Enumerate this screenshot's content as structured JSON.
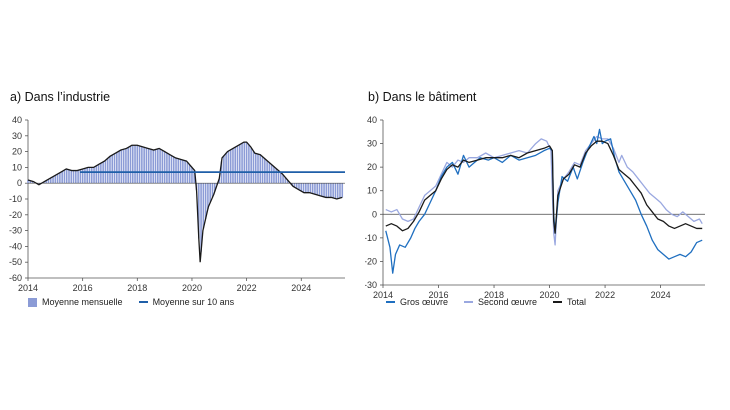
{
  "chart_data": [
    {
      "type": "bar",
      "title": "a)  Dans l’industrie",
      "ylim": [
        -60,
        40
      ],
      "yticks": [
        40,
        30,
        20,
        10,
        0,
        -10,
        -20,
        -30,
        -40,
        -50,
        -60
      ],
      "xlim": [
        2014,
        2025.6
      ],
      "xticks": [
        "2014",
        "2016",
        "2018",
        "2020",
        "2022",
        "2024"
      ],
      "grid": false,
      "legend_position": "bottom",
      "colors": {
        "bars": "#8b9bd6",
        "line": "#1a1a1a",
        "avg": "#1f5fa8"
      },
      "series": [
        {
          "name": "Moyenne mensuelle",
          "render": "bars+line",
          "points": [
            [
              2014.0,
              2
            ],
            [
              2014.2,
              1
            ],
            [
              2014.4,
              -1
            ],
            [
              2014.6,
              1
            ],
            [
              2014.8,
              3
            ],
            [
              2015.0,
              5
            ],
            [
              2015.2,
              7
            ],
            [
              2015.4,
              9
            ],
            [
              2015.6,
              8
            ],
            [
              2015.8,
              8
            ],
            [
              2016.0,
              9
            ],
            [
              2016.2,
              10
            ],
            [
              2016.4,
              10
            ],
            [
              2016.6,
              12
            ],
            [
              2016.8,
              14
            ],
            [
              2017.0,
              17
            ],
            [
              2017.2,
              19
            ],
            [
              2017.4,
              21
            ],
            [
              2017.6,
              22
            ],
            [
              2017.8,
              24
            ],
            [
              2018.0,
              24
            ],
            [
              2018.2,
              23
            ],
            [
              2018.4,
              22
            ],
            [
              2018.6,
              21
            ],
            [
              2018.8,
              22
            ],
            [
              2019.0,
              20
            ],
            [
              2019.2,
              18
            ],
            [
              2019.4,
              16
            ],
            [
              2019.6,
              15
            ],
            [
              2019.8,
              14
            ],
            [
              2019.95,
              11
            ],
            [
              2020.1,
              8
            ],
            [
              2020.17,
              -5
            ],
            [
              2020.25,
              -35
            ],
            [
              2020.3,
              -50
            ],
            [
              2020.4,
              -30
            ],
            [
              2020.6,
              -15
            ],
            [
              2020.8,
              -7
            ],
            [
              2021.0,
              3
            ],
            [
              2021.1,
              16
            ],
            [
              2021.3,
              20
            ],
            [
              2021.5,
              22
            ],
            [
              2021.7,
              24
            ],
            [
              2021.9,
              26
            ],
            [
              2022.0,
              26
            ],
            [
              2022.15,
              23
            ],
            [
              2022.3,
              19
            ],
            [
              2022.5,
              18
            ],
            [
              2022.7,
              15
            ],
            [
              2022.9,
              12
            ],
            [
              2023.1,
              9
            ],
            [
              2023.3,
              6
            ],
            [
              2023.5,
              2
            ],
            [
              2023.7,
              -2
            ],
            [
              2023.9,
              -4
            ],
            [
              2024.1,
              -6
            ],
            [
              2024.3,
              -6
            ],
            [
              2024.5,
              -7
            ],
            [
              2024.7,
              -8
            ],
            [
              2024.9,
              -9
            ],
            [
              2025.1,
              -9
            ],
            [
              2025.3,
              -10
            ],
            [
              2025.5,
              -9
            ]
          ]
        },
        {
          "name": "Moyenne sur 10 ans",
          "render": "hline",
          "value": 7,
          "x_range": [
            2015.9,
            2025.6
          ]
        }
      ],
      "legend": [
        {
          "label": "Moyenne mensuelle",
          "kind": "box",
          "color": "#8b9bd6"
        },
        {
          "label": "Moyenne sur 10 ans",
          "kind": "line",
          "color": "#1f5fa8"
        }
      ]
    },
    {
      "type": "line",
      "title": "b)  Dans le bâtiment",
      "ylim": [
        -30,
        40
      ],
      "yticks": [
        40,
        30,
        20,
        10,
        0,
        -10,
        -20,
        -30
      ],
      "xlim": [
        2014,
        2025.6
      ],
      "xticks": [
        "2014",
        "2016",
        "2018",
        "2020",
        "2022",
        "2024"
      ],
      "grid": false,
      "legend_position": "bottom",
      "zero_line": true,
      "series": [
        {
          "name": "Gros œuvre",
          "color": "#1f6fc0",
          "points": [
            [
              2014.1,
              -7
            ],
            [
              2014.25,
              -14
            ],
            [
              2014.35,
              -25
            ],
            [
              2014.45,
              -17
            ],
            [
              2014.6,
              -13
            ],
            [
              2014.8,
              -14
            ],
            [
              2015.0,
              -10
            ],
            [
              2015.15,
              -6
            ],
            [
              2015.3,
              -3
            ],
            [
              2015.5,
              0
            ],
            [
              2015.7,
              5
            ],
            [
              2015.9,
              10
            ],
            [
              2016.1,
              16
            ],
            [
              2016.3,
              20
            ],
            [
              2016.5,
              22
            ],
            [
              2016.7,
              17
            ],
            [
              2016.9,
              25
            ],
            [
              2017.1,
              20
            ],
            [
              2017.3,
              22
            ],
            [
              2017.5,
              24
            ],
            [
              2017.8,
              23
            ],
            [
              2018.0,
              24
            ],
            [
              2018.3,
              22
            ],
            [
              2018.6,
              25
            ],
            [
              2018.9,
              23
            ],
            [
              2019.2,
              24
            ],
            [
              2019.5,
              25
            ],
            [
              2019.8,
              27
            ],
            [
              2020.0,
              28
            ],
            [
              2020.1,
              27
            ],
            [
              2020.15,
              0
            ],
            [
              2020.2,
              -8
            ],
            [
              2020.3,
              5
            ],
            [
              2020.45,
              16
            ],
            [
              2020.65,
              14
            ],
            [
              2020.85,
              20
            ],
            [
              2021.0,
              15
            ],
            [
              2021.2,
              22
            ],
            [
              2021.4,
              28
            ],
            [
              2021.6,
              33
            ],
            [
              2021.7,
              30
            ],
            [
              2021.8,
              36
            ],
            [
              2021.9,
              30
            ],
            [
              2022.0,
              31
            ],
            [
              2022.2,
              32
            ],
            [
              2022.35,
              24
            ],
            [
              2022.5,
              18
            ],
            [
              2022.7,
              14
            ],
            [
              2022.9,
              10
            ],
            [
              2023.1,
              6
            ],
            [
              2023.3,
              0
            ],
            [
              2023.5,
              -5
            ],
            [
              2023.7,
              -11
            ],
            [
              2023.9,
              -15
            ],
            [
              2024.1,
              -17
            ],
            [
              2024.3,
              -19
            ],
            [
              2024.5,
              -18
            ],
            [
              2024.7,
              -17
            ],
            [
              2024.9,
              -18
            ],
            [
              2025.1,
              -16
            ],
            [
              2025.3,
              -12
            ],
            [
              2025.5,
              -11
            ]
          ]
        },
        {
          "name": "Second œuvre",
          "color": "#9aa8e0",
          "points": [
            [
              2014.1,
              2
            ],
            [
              2014.3,
              1
            ],
            [
              2014.5,
              2
            ],
            [
              2014.7,
              -2
            ],
            [
              2014.9,
              -3
            ],
            [
              2015.1,
              -2
            ],
            [
              2015.3,
              3
            ],
            [
              2015.5,
              8
            ],
            [
              2015.7,
              10
            ],
            [
              2015.9,
              12
            ],
            [
              2016.1,
              17
            ],
            [
              2016.3,
              22
            ],
            [
              2016.5,
              20
            ],
            [
              2016.7,
              23
            ],
            [
              2016.9,
              22
            ],
            [
              2017.1,
              24
            ],
            [
              2017.4,
              24
            ],
            [
              2017.7,
              26
            ],
            [
              2018.0,
              24
            ],
            [
              2018.3,
              25
            ],
            [
              2018.6,
              26
            ],
            [
              2018.9,
              27
            ],
            [
              2019.2,
              26
            ],
            [
              2019.5,
              30
            ],
            [
              2019.7,
              32
            ],
            [
              2019.9,
              31
            ],
            [
              2020.05,
              27
            ],
            [
              2020.15,
              -8
            ],
            [
              2020.2,
              -13
            ],
            [
              2020.3,
              10
            ],
            [
              2020.5,
              15
            ],
            [
              2020.7,
              18
            ],
            [
              2020.9,
              22
            ],
            [
              2021.1,
              21
            ],
            [
              2021.3,
              27
            ],
            [
              2021.5,
              30
            ],
            [
              2021.7,
              33
            ],
            [
              2021.9,
              32
            ],
            [
              2022.1,
              32
            ],
            [
              2022.3,
              28
            ],
            [
              2022.5,
              22
            ],
            [
              2022.6,
              25
            ],
            [
              2022.8,
              20
            ],
            [
              2023.0,
              18
            ],
            [
              2023.2,
              15
            ],
            [
              2023.4,
              12
            ],
            [
              2023.6,
              9
            ],
            [
              2023.8,
              7
            ],
            [
              2024.0,
              5
            ],
            [
              2024.2,
              2
            ],
            [
              2024.4,
              0
            ],
            [
              2024.6,
              -1
            ],
            [
              2024.8,
              1
            ],
            [
              2025.0,
              -1
            ],
            [
              2025.2,
              -3
            ],
            [
              2025.4,
              -2
            ],
            [
              2025.5,
              -4
            ]
          ]
        },
        {
          "name": "Total",
          "color": "#1a1a1a",
          "points": [
            [
              2014.1,
              -5
            ],
            [
              2014.3,
              -4
            ],
            [
              2014.5,
              -5
            ],
            [
              2014.7,
              -7
            ],
            [
              2014.9,
              -6
            ],
            [
              2015.1,
              -3
            ],
            [
              2015.3,
              1
            ],
            [
              2015.5,
              6
            ],
            [
              2015.7,
              8
            ],
            [
              2015.9,
              10
            ],
            [
              2016.1,
              15
            ],
            [
              2016.3,
              19
            ],
            [
              2016.5,
              21
            ],
            [
              2016.7,
              20
            ],
            [
              2016.9,
              23
            ],
            [
              2017.1,
              22
            ],
            [
              2017.4,
              23
            ],
            [
              2017.7,
              24
            ],
            [
              2018.0,
              24
            ],
            [
              2018.3,
              24
            ],
            [
              2018.6,
              25
            ],
            [
              2018.9,
              24
            ],
            [
              2019.2,
              26
            ],
            [
              2019.5,
              27
            ],
            [
              2019.8,
              28
            ],
            [
              2020.0,
              29
            ],
            [
              2020.1,
              27
            ],
            [
              2020.15,
              -3
            ],
            [
              2020.2,
              -8
            ],
            [
              2020.3,
              8
            ],
            [
              2020.5,
              15
            ],
            [
              2020.7,
              17
            ],
            [
              2020.9,
              21
            ],
            [
              2021.1,
              20
            ],
            [
              2021.3,
              26
            ],
            [
              2021.5,
              29
            ],
            [
              2021.7,
              31
            ],
            [
              2021.9,
              31
            ],
            [
              2022.1,
              30
            ],
            [
              2022.3,
              25
            ],
            [
              2022.5,
              19
            ],
            [
              2022.7,
              17
            ],
            [
              2022.9,
              15
            ],
            [
              2023.1,
              12
            ],
            [
              2023.3,
              9
            ],
            [
              2023.5,
              4
            ],
            [
              2023.7,
              1
            ],
            [
              2023.9,
              -2
            ],
            [
              2024.1,
              -3
            ],
            [
              2024.3,
              -5
            ],
            [
              2024.5,
              -6
            ],
            [
              2024.7,
              -5
            ],
            [
              2024.9,
              -4
            ],
            [
              2025.1,
              -5
            ],
            [
              2025.3,
              -6
            ],
            [
              2025.5,
              -6
            ]
          ]
        }
      ],
      "legend": [
        {
          "label": "Gros œuvre",
          "kind": "line",
          "color": "#1f6fc0"
        },
        {
          "label": "Second œuvre",
          "kind": "line",
          "color": "#9aa8e0"
        },
        {
          "label": "Total",
          "kind": "line",
          "color": "#1a1a1a"
        }
      ]
    }
  ]
}
